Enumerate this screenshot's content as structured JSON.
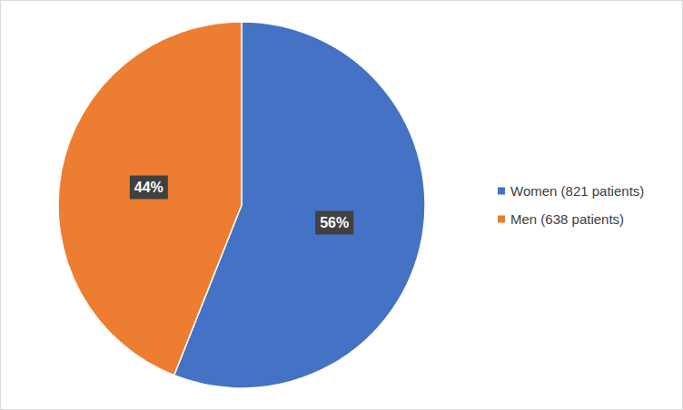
{
  "chart_data": {
    "type": "pie",
    "categories": [
      "Women (821 patients)",
      "Men (638 patients)"
    ],
    "values": [
      56,
      44
    ],
    "value_labels": [
      "56%",
      "44%"
    ],
    "colors": [
      "#4472c4",
      "#ed7d31"
    ],
    "data_labels": true,
    "legend": "right"
  }
}
